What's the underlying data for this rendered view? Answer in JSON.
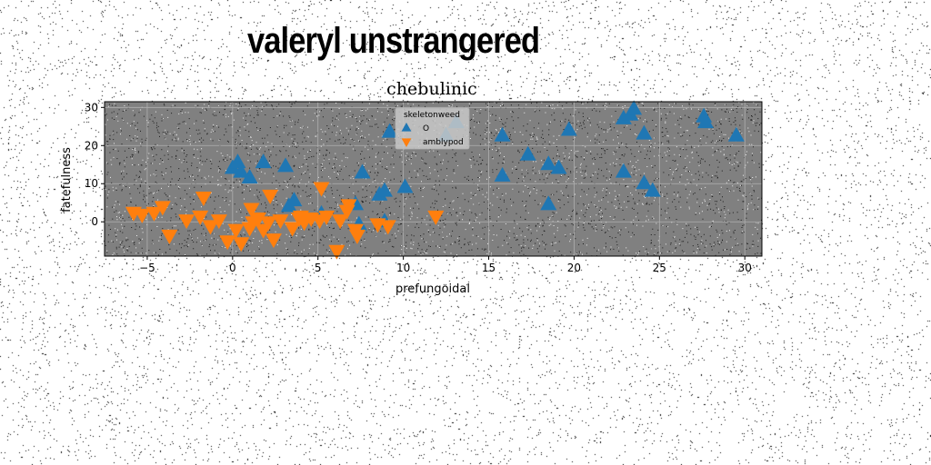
{
  "figure": {
    "suptitle": "valeryl unstrangered"
  },
  "colors": {
    "series_a": "#1f77b4",
    "series_b": "#ff7f0e",
    "plot_bg": "#808080",
    "grid": "#b0b0b0"
  },
  "chart_data": {
    "type": "scatter",
    "title": "chebulinic",
    "xlabel": "prefungoidal",
    "ylabel": "fatefulness",
    "xlim": [
      -7.5,
      31
    ],
    "ylim": [
      -9,
      31.5
    ],
    "xticks": [
      -5,
      0,
      5,
      10,
      15,
      20,
      25,
      30
    ],
    "yticks": [
      0,
      10,
      20,
      30
    ],
    "grid": true,
    "legend": {
      "title": "skeletonweed",
      "placement": "top-center"
    },
    "series": [
      {
        "name": "O",
        "marker": "triangle-up",
        "points": [
          [
            0,
            14
          ],
          [
            0.3,
            15.5
          ],
          [
            0.5,
            13
          ],
          [
            1,
            11.5
          ],
          [
            1.8,
            15.5
          ],
          [
            3.1,
            14.5
          ],
          [
            3.6,
            5.5
          ],
          [
            3.3,
            4
          ],
          [
            7.6,
            12.8
          ],
          [
            7.2,
            4.5
          ],
          [
            8.6,
            7
          ],
          [
            8.9,
            8
          ],
          [
            9.2,
            23.5
          ],
          [
            10.1,
            9
          ],
          [
            12.5,
            22.5
          ],
          [
            13.1,
            26
          ],
          [
            15.8,
            22.5
          ],
          [
            15.8,
            12
          ],
          [
            17.3,
            17.5
          ],
          [
            18.5,
            15
          ],
          [
            18.5,
            4.5
          ],
          [
            19.1,
            14
          ],
          [
            19.7,
            24
          ],
          [
            22.9,
            27
          ],
          [
            23.3,
            28
          ],
          [
            23.5,
            29.5
          ],
          [
            22.9,
            13
          ],
          [
            24.1,
            23
          ],
          [
            24.1,
            10
          ],
          [
            24.6,
            8
          ],
          [
            27.6,
            27.5
          ],
          [
            27.7,
            26
          ],
          [
            29.5,
            22.5
          ],
          [
            8.9,
            0
          ],
          [
            5.2,
            2
          ],
          [
            7.4,
            -0.8
          ]
        ]
      },
      {
        "name": "amblypod",
        "marker": "triangle-down",
        "points": [
          [
            -5.8,
            2.5
          ],
          [
            -5.3,
            2
          ],
          [
            -4.6,
            2.5
          ],
          [
            -4.1,
            4
          ],
          [
            -3.7,
            -3.5
          ],
          [
            -2.7,
            0.5
          ],
          [
            -1.9,
            1.5
          ],
          [
            -1.7,
            6.5
          ],
          [
            -1.3,
            -1
          ],
          [
            -0.8,
            0.5
          ],
          [
            -0.3,
            -5
          ],
          [
            0.2,
            -2
          ],
          [
            0.5,
            -5.5
          ],
          [
            1.1,
            3.5
          ],
          [
            1,
            -1.5
          ],
          [
            1.2,
            0
          ],
          [
            1.5,
            1
          ],
          [
            1.8,
            -2
          ],
          [
            2.1,
            0
          ],
          [
            2.2,
            7
          ],
          [
            2.4,
            -4.5
          ],
          [
            2.8,
            0.5
          ],
          [
            3.5,
            -1.5
          ],
          [
            4,
            1.5
          ],
          [
            4.2,
            0
          ],
          [
            4.6,
            1
          ],
          [
            5.1,
            0.5
          ],
          [
            5.5,
            1.5
          ],
          [
            6.1,
            -7.5
          ],
          [
            6.3,
            0.5
          ],
          [
            6.7,
            3
          ],
          [
            6.8,
            4.5
          ],
          [
            7.2,
            -2
          ],
          [
            7.3,
            -3.5
          ],
          [
            8.5,
            -0.5
          ],
          [
            9.1,
            -1
          ],
          [
            11.9,
            1.5
          ],
          [
            5.2,
            9
          ],
          [
            3.9,
            1
          ]
        ]
      }
    ]
  }
}
